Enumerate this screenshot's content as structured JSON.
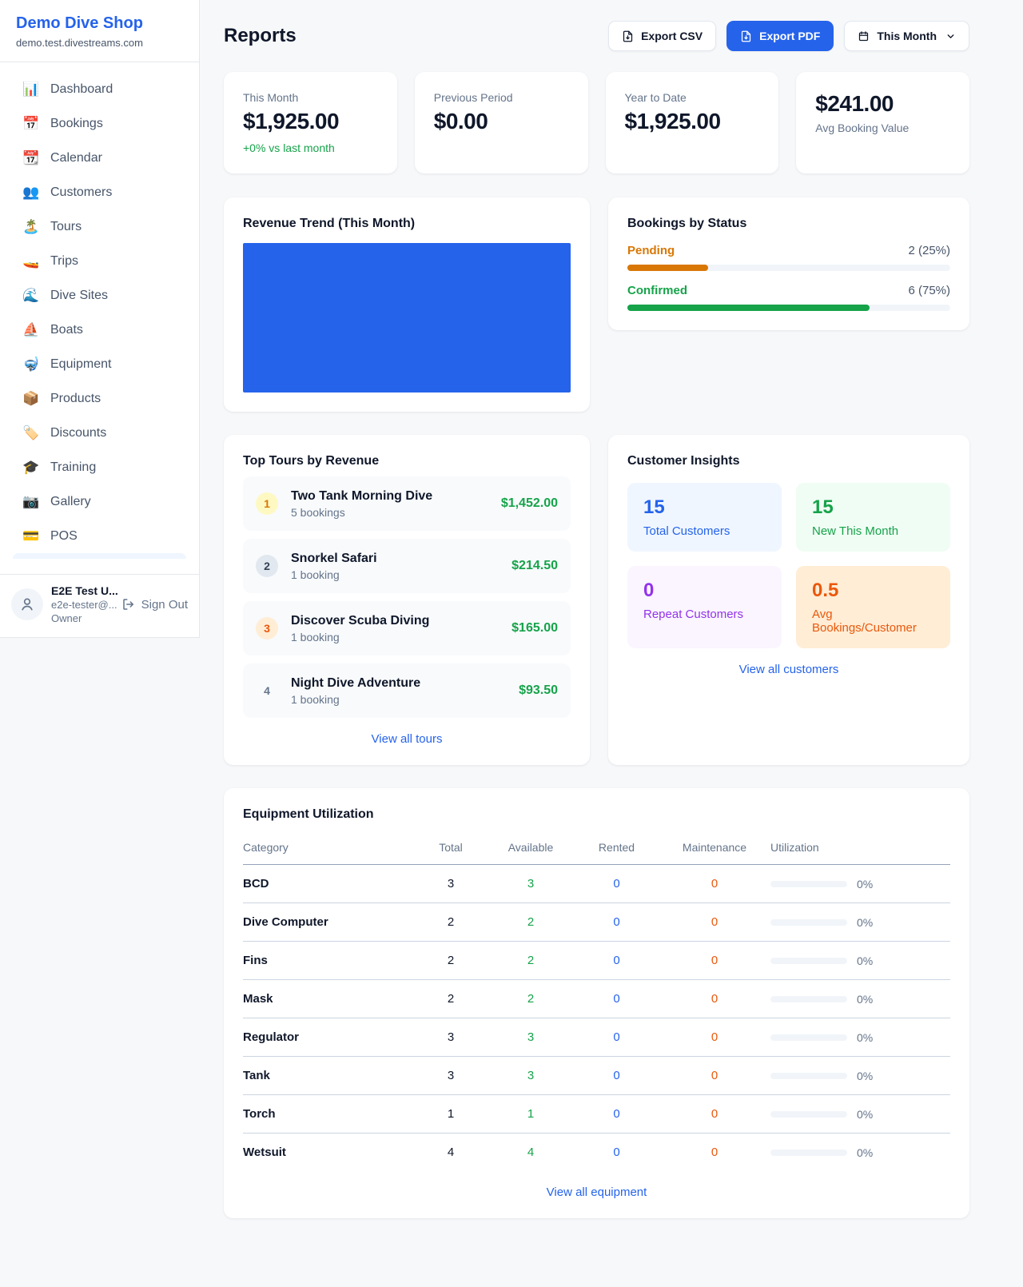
{
  "colors": {
    "accent_blue": "#2563eb",
    "green": "#16a34a",
    "orange_pending": "#d97706",
    "orange_deep": "#ea580c",
    "purple": "#9333ea"
  },
  "sidebar": {
    "brand": {
      "name": "Demo Dive Shop",
      "domain": "demo.test.divestreams.com"
    },
    "items": [
      {
        "label": "Dashboard",
        "icon": "📊",
        "icon_name": "bar-chart-icon"
      },
      {
        "label": "Bookings",
        "icon": "📅",
        "icon_name": "calendar-icon"
      },
      {
        "label": "Calendar",
        "icon": "📆",
        "icon_name": "tear-off-calendar-icon"
      },
      {
        "label": "Customers",
        "icon": "👥",
        "icon_name": "people-icon"
      },
      {
        "label": "Tours",
        "icon": "🏝️",
        "icon_name": "island-icon"
      },
      {
        "label": "Trips",
        "icon": "🚤",
        "icon_name": "speedboat-icon"
      },
      {
        "label": "Dive Sites",
        "icon": "🌊",
        "icon_name": "wave-icon"
      },
      {
        "label": "Boats",
        "icon": "⛵",
        "icon_name": "sailboat-icon"
      },
      {
        "label": "Equipment",
        "icon": "🤿",
        "icon_name": "diving-mask-icon"
      },
      {
        "label": "Products",
        "icon": "📦",
        "icon_name": "package-icon"
      },
      {
        "label": "Discounts",
        "icon": "🏷️",
        "icon_name": "tag-icon"
      },
      {
        "label": "Training",
        "icon": "🎓",
        "icon_name": "graduation-cap-icon"
      },
      {
        "label": "Gallery",
        "icon": "📷",
        "icon_name": "camera-icon"
      },
      {
        "label": "POS",
        "icon": "💳",
        "icon_name": "credit-card-icon"
      }
    ],
    "user": {
      "name": "E2E Test U...",
      "email": "e2e-tester@...",
      "role": "Owner",
      "sign_out": "Sign Out"
    }
  },
  "header": {
    "title": "Reports",
    "export_csv": "Export CSV",
    "export_pdf": "Export PDF",
    "period": "This Month"
  },
  "stats": [
    {
      "label": "This Month",
      "value": "$1,925.00",
      "delta": "+0% vs last month"
    },
    {
      "label": "Previous Period",
      "value": "$0.00"
    },
    {
      "label": "Year to Date",
      "value": "$1,925.00"
    },
    {
      "label": "Avg Booking Value",
      "value": "$241.00"
    }
  ],
  "revenue_trend": {
    "title": "Revenue Trend (This Month)"
  },
  "chart_data": {
    "type": "bar",
    "title": "Revenue Trend (This Month)",
    "categories": [
      "This Month"
    ],
    "values": [
      1925
    ],
    "bar_color": "#2563eb",
    "note": "single full-area bar, no axes or labels rendered"
  },
  "bookings_by_status": {
    "title": "Bookings by Status",
    "statuses": [
      {
        "label": "Pending",
        "value": "2 (25%)",
        "pct": 25
      },
      {
        "label": "Confirmed",
        "value": "6 (75%)",
        "pct": 75
      }
    ]
  },
  "top_tours": {
    "title": "Top Tours by Revenue",
    "view_all": "View all tours",
    "items": [
      {
        "rank": "1",
        "name": "Two Tank Morning Dive",
        "bookings": "5 bookings",
        "revenue": "$1,452.00"
      },
      {
        "rank": "2",
        "name": "Snorkel Safari",
        "bookings": "1 booking",
        "revenue": "$214.50"
      },
      {
        "rank": "3",
        "name": "Discover Scuba Diving",
        "bookings": "1 booking",
        "revenue": "$165.00"
      },
      {
        "rank": "4",
        "name": "Night Dive Adventure",
        "bookings": "1 booking",
        "revenue": "$93.50"
      }
    ]
  },
  "customer_insights": {
    "title": "Customer Insights",
    "view_all": "View all customers",
    "tiles": [
      {
        "value": "15",
        "label": "Total Customers"
      },
      {
        "value": "15",
        "label": "New This Month"
      },
      {
        "value": "0",
        "label": "Repeat Customers"
      },
      {
        "value": "0.5",
        "label": "Avg Bookings/Customer"
      }
    ]
  },
  "equipment": {
    "title": "Equipment Utilization",
    "view_all": "View all equipment",
    "columns": [
      "Category",
      "Total",
      "Available",
      "Rented",
      "Maintenance",
      "Utilization"
    ],
    "rows": [
      {
        "category": "BCD",
        "total": "3",
        "available": "3",
        "rented": "0",
        "maintenance": "0",
        "utilization": "0%",
        "pct": 0
      },
      {
        "category": "Dive Computer",
        "total": "2",
        "available": "2",
        "rented": "0",
        "maintenance": "0",
        "utilization": "0%",
        "pct": 0
      },
      {
        "category": "Fins",
        "total": "2",
        "available": "2",
        "rented": "0",
        "maintenance": "0",
        "utilization": "0%",
        "pct": 0
      },
      {
        "category": "Mask",
        "total": "2",
        "available": "2",
        "rented": "0",
        "maintenance": "0",
        "utilization": "0%",
        "pct": 0
      },
      {
        "category": "Regulator",
        "total": "3",
        "available": "3",
        "rented": "0",
        "maintenance": "0",
        "utilization": "0%",
        "pct": 0
      },
      {
        "category": "Tank",
        "total": "3",
        "available": "3",
        "rented": "0",
        "maintenance": "0",
        "utilization": "0%",
        "pct": 0
      },
      {
        "category": "Torch",
        "total": "1",
        "available": "1",
        "rented": "0",
        "maintenance": "0",
        "utilization": "0%",
        "pct": 0
      },
      {
        "category": "Wetsuit",
        "total": "4",
        "available": "4",
        "rented": "0",
        "maintenance": "0",
        "utilization": "0%",
        "pct": 0
      }
    ]
  }
}
